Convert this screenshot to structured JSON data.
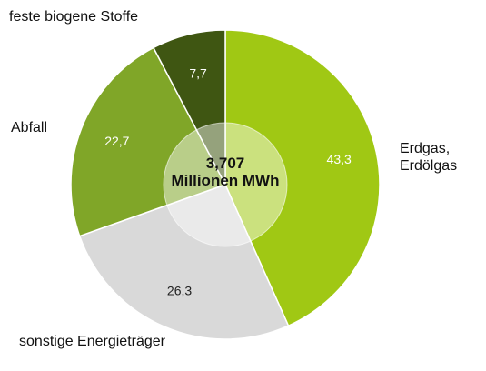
{
  "chart_data": {
    "type": "pie",
    "categories": [
      "Erdgas, Erdölgas",
      "sonstige Energieträger",
      "Abfall",
      "feste biogene Stoffe"
    ],
    "values": [
      43.3,
      26.3,
      22.7,
      7.7
    ],
    "value_labels": [
      "43,3",
      "26,3",
      "22,7",
      "7,7"
    ],
    "colors": [
      "#a0c814",
      "#d9d9d9",
      "#80a628",
      "#3f5612"
    ],
    "center_label": "3,707 Millionen MWh"
  }
}
